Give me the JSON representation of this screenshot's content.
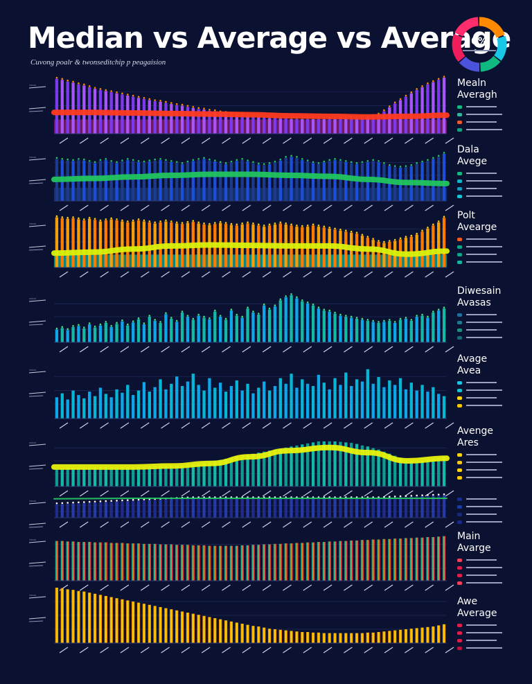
{
  "header": {
    "title": "Median vs Average vs Average",
    "subtitle": "Cuvong poalr & twonseditchip p peagaision",
    "donut_label": "0%",
    "donut_colors": [
      "#ff8a00",
      "#19c6e6",
      "#10b981",
      "#4a53d9",
      "#ef1d5c",
      "#ff2d6b"
    ]
  },
  "legends": [
    {
      "title": [
        "Mealn",
        "Averagh"
      ],
      "swatches": [
        "#10b981",
        "#2fb5a0",
        "#ef5a2a",
        "#11a37f"
      ]
    },
    {
      "title": [
        "Dala",
        "Avege"
      ],
      "swatches": [
        "#10b981",
        "#0fb6c9",
        "#0f9cbf",
        "#13c8d6"
      ]
    },
    {
      "title": [
        "Polt",
        "Avearge"
      ],
      "swatches": [
        "#f35a1d",
        "#0aa687",
        "#0aa687",
        "#11b7a0"
      ]
    },
    {
      "title": [
        "Diwesain",
        "Avasas"
      ],
      "swatches": [
        "#1f6ea0",
        "#1d7c92",
        "#1e8e80",
        "#1a6b75"
      ]
    },
    {
      "title": [
        "Avage",
        "Avea"
      ],
      "swatches": [
        "#19c6e6",
        "#12c2d0",
        "#ffd60a",
        "#f7c900"
      ]
    },
    {
      "title": [
        "Avenge",
        "Ares"
      ],
      "swatches": [
        "#ffd60a",
        "#f4c81d",
        "#ffd60a",
        "#ffcc00"
      ]
    },
    {
      "title": [
        "",
        ""
      ],
      "swatches": [
        "#1a2a8a",
        "#1d3aa0",
        "#172a7a",
        "#1a2a8a"
      ]
    },
    {
      "title": [
        "Main",
        "Avarge"
      ],
      "swatches": [
        "#f43f5e",
        "#e11d48",
        "#e11d48",
        "#f43f5e"
      ]
    },
    {
      "title": [
        "Awe",
        "Average"
      ],
      "swatches": [
        "#e11d48",
        "#e11d48",
        "#e11d48",
        "#be123c"
      ]
    }
  ],
  "chart_data": [
    {
      "type": "bar",
      "panel": 1,
      "n": 72,
      "bar_colors": [
        "#7c3aed",
        "#a855f7"
      ],
      "dot_color": "#ff8a00",
      "line_color": "#ff3b1f",
      "bottom_color": "#7c1d6f",
      "values": [
        0.98,
        0.96,
        0.93,
        0.91,
        0.88,
        0.86,
        0.83,
        0.8,
        0.78,
        0.76,
        0.74,
        0.72,
        0.7,
        0.68,
        0.66,
        0.64,
        0.62,
        0.6,
        0.58,
        0.57,
        0.55,
        0.53,
        0.51,
        0.5,
        0.48,
        0.46,
        0.44,
        0.43,
        0.41,
        0.4,
        0.38,
        0.37,
        0.35,
        0.34,
        0.33,
        0.32,
        0.31,
        0.3,
        0.29,
        0.28,
        0.28,
        0.27,
        0.27,
        0.26,
        0.26,
        0.26,
        0.26,
        0.26,
        0.26,
        0.26,
        0.26,
        0.26,
        0.27,
        0.27,
        0.28,
        0.28,
        0.29,
        0.3,
        0.31,
        0.34,
        0.4,
        0.47,
        0.54,
        0.6,
        0.66,
        0.72,
        0.78,
        0.83,
        0.88,
        0.92,
        0.96,
        1.0
      ],
      "line": [
        0.38,
        0.38,
        0.37,
        0.36,
        0.35,
        0.34,
        0.32,
        0.31,
        0.3,
        0.31,
        0.33
      ]
    },
    {
      "type": "bar",
      "panel": 2,
      "n": 72,
      "bar_colors": [
        "#1e3a8a",
        "#1d4ed8"
      ],
      "dot_color": "#22c55e",
      "line_color": "#22c55e",
      "bottom_color": "#16356e",
      "values": [
        0.82,
        0.8,
        0.79,
        0.78,
        0.8,
        0.79,
        0.76,
        0.74,
        0.78,
        0.8,
        0.76,
        0.74,
        0.77,
        0.8,
        0.78,
        0.76,
        0.75,
        0.77,
        0.79,
        0.8,
        0.78,
        0.76,
        0.74,
        0.72,
        0.75,
        0.78,
        0.8,
        0.82,
        0.79,
        0.77,
        0.74,
        0.72,
        0.75,
        0.78,
        0.8,
        0.77,
        0.74,
        0.71,
        0.7,
        0.72,
        0.75,
        0.79,
        0.84,
        0.86,
        0.84,
        0.8,
        0.77,
        0.74,
        0.72,
        0.75,
        0.78,
        0.8,
        0.78,
        0.76,
        0.74,
        0.72,
        0.74,
        0.76,
        0.78,
        0.76,
        0.72,
        0.68,
        0.66,
        0.65,
        0.66,
        0.68,
        0.72,
        0.75,
        0.78,
        0.82,
        0.86,
        0.92
      ],
      "line": [
        0.42,
        0.44,
        0.47,
        0.5,
        0.52,
        0.52,
        0.5,
        0.48,
        0.42,
        0.36,
        0.34
      ]
    },
    {
      "type": "bar",
      "panel": 3,
      "n": 72,
      "bar_colors": [
        "#f59e0b",
        "#ff7a00"
      ],
      "dot_color": "#facc15",
      "line_color": "#d9f20b",
      "bottom_color": "#0f9b8e",
      "values": [
        0.98,
        0.96,
        0.95,
        0.96,
        0.94,
        0.92,
        0.95,
        0.93,
        0.9,
        0.92,
        0.94,
        0.92,
        0.9,
        0.88,
        0.9,
        0.92,
        0.9,
        0.88,
        0.86,
        0.88,
        0.9,
        0.88,
        0.86,
        0.85,
        0.87,
        0.89,
        0.86,
        0.84,
        0.83,
        0.85,
        0.87,
        0.85,
        0.83,
        0.82,
        0.84,
        0.86,
        0.84,
        0.82,
        0.8,
        0.82,
        0.84,
        0.86,
        0.84,
        0.82,
        0.8,
        0.79,
        0.8,
        0.82,
        0.8,
        0.78,
        0.76,
        0.74,
        0.72,
        0.7,
        0.68,
        0.66,
        0.62,
        0.58,
        0.54,
        0.5,
        0.48,
        0.5,
        0.52,
        0.55,
        0.58,
        0.6,
        0.64,
        0.7,
        0.76,
        0.82,
        0.88,
        0.97
      ],
      "line": [
        0.28,
        0.3,
        0.36,
        0.42,
        0.44,
        0.43,
        0.42,
        0.42,
        0.36,
        0.26,
        0.32
      ]
    },
    {
      "type": "bar",
      "panel": 4,
      "n": 72,
      "bar_colors": [
        "#0ea5e9",
        "#14b8a6"
      ],
      "dot_color": "#4ade80",
      "line_color": "",
      "bottom_color": "",
      "values": [
        0.25,
        0.28,
        0.24,
        0.3,
        0.32,
        0.27,
        0.35,
        0.29,
        0.33,
        0.38,
        0.3,
        0.36,
        0.41,
        0.33,
        0.39,
        0.45,
        0.35,
        0.5,
        0.42,
        0.38,
        0.55,
        0.46,
        0.4,
        0.58,
        0.5,
        0.44,
        0.52,
        0.48,
        0.45,
        0.6,
        0.5,
        0.44,
        0.62,
        0.52,
        0.48,
        0.66,
        0.58,
        0.54,
        0.72,
        0.64,
        0.7,
        0.82,
        0.88,
        0.92,
        0.86,
        0.8,
        0.76,
        0.72,
        0.66,
        0.62,
        0.6,
        0.56,
        0.52,
        0.5,
        0.48,
        0.46,
        0.44,
        0.42,
        0.4,
        0.38,
        0.4,
        0.42,
        0.38,
        0.44,
        0.46,
        0.42,
        0.5,
        0.52,
        0.48,
        0.58,
        0.62,
        0.66
      ],
      "line": []
    },
    {
      "type": "bar",
      "panel": 5,
      "n": 72,
      "bar_colors": [
        "#0ea5e9",
        "#06b6d4"
      ],
      "dot_color": "",
      "line_color": "",
      "bottom_color": "",
      "values": [
        0.38,
        0.45,
        0.34,
        0.5,
        0.42,
        0.36,
        0.48,
        0.4,
        0.55,
        0.44,
        0.38,
        0.52,
        0.46,
        0.6,
        0.42,
        0.5,
        0.65,
        0.48,
        0.56,
        0.7,
        0.52,
        0.62,
        0.75,
        0.58,
        0.66,
        0.8,
        0.6,
        0.5,
        0.72,
        0.55,
        0.64,
        0.48,
        0.58,
        0.68,
        0.5,
        0.62,
        0.45,
        0.55,
        0.66,
        0.5,
        0.58,
        0.72,
        0.62,
        0.8,
        0.55,
        0.7,
        0.62,
        0.58,
        0.78,
        0.64,
        0.52,
        0.72,
        0.6,
        0.82,
        0.58,
        0.7,
        0.66,
        0.88,
        0.62,
        0.74,
        0.56,
        0.68,
        0.6,
        0.72,
        0.52,
        0.64,
        0.5,
        0.6,
        0.48,
        0.56,
        0.44,
        0.4
      ],
      "line": []
    },
    {
      "type": "bar",
      "panel": 6,
      "n": 72,
      "bar_colors": [
        "#0f9b8e",
        "#14b8a6"
      ],
      "dot_color": "",
      "line_color": "#e9f20b",
      "bottom_color": "",
      "values": [
        0.35,
        0.35,
        0.36,
        0.36,
        0.36,
        0.37,
        0.37,
        0.37,
        0.38,
        0.38,
        0.38,
        0.38,
        0.38,
        0.38,
        0.38,
        0.39,
        0.39,
        0.39,
        0.4,
        0.4,
        0.4,
        0.41,
        0.41,
        0.42,
        0.43,
        0.44,
        0.45,
        0.46,
        0.48,
        0.5,
        0.52,
        0.54,
        0.56,
        0.58,
        0.6,
        0.62,
        0.64,
        0.66,
        0.68,
        0.7,
        0.72,
        0.74,
        0.76,
        0.78,
        0.8,
        0.82,
        0.84,
        0.86,
        0.88,
        0.88,
        0.88,
        0.88,
        0.87,
        0.86,
        0.85,
        0.83,
        0.8,
        0.78,
        0.75,
        0.72,
        0.68,
        0.64,
        0.6,
        0.56,
        0.52,
        0.5,
        0.5,
        0.5,
        0.52,
        0.54,
        0.56,
        0.58
      ],
      "line": [
        0.38,
        0.38,
        0.38,
        0.4,
        0.45,
        0.58,
        0.7,
        0.76,
        0.66,
        0.5,
        0.55
      ]
    },
    {
      "type": "bar",
      "panel": 7,
      "n": 72,
      "bar_colors": [
        "#1e2b8a",
        "#253aa8"
      ],
      "dot_color": "#ffffff",
      "line_color": "#22c55e",
      "bottom_color": "",
      "values": [
        0.55,
        0.56,
        0.57,
        0.58,
        0.59,
        0.6,
        0.61,
        0.62,
        0.63,
        0.64,
        0.65,
        0.66,
        0.67,
        0.68,
        0.69,
        0.7,
        0.71,
        0.72,
        0.73,
        0.74,
        0.75,
        0.76,
        0.77,
        0.78,
        0.79,
        0.8,
        0.8,
        0.8,
        0.8,
        0.8,
        0.8,
        0.8,
        0.8,
        0.8,
        0.8,
        0.8,
        0.8,
        0.8,
        0.8,
        0.8,
        0.8,
        0.8,
        0.8,
        0.8,
        0.8,
        0.8,
        0.8,
        0.8,
        0.8,
        0.8,
        0.8,
        0.8,
        0.8,
        0.8,
        0.8,
        0.8,
        0.8,
        0.8,
        0.8,
        0.8,
        0.81,
        0.82,
        0.83,
        0.84,
        0.85,
        0.86,
        0.87,
        0.88,
        0.89,
        0.9,
        0.91,
        0.92
      ],
      "line": [
        0.78,
        0.79,
        0.8,
        0.8,
        0.8,
        0.8,
        0.8,
        0.8,
        0.8,
        0.8,
        0.8
      ]
    },
    {
      "type": "bar",
      "panel": 8,
      "n": 72,
      "bar_colors": [
        "gradient-teal-red"
      ],
      "dot_color": "",
      "line_color": "",
      "bottom_color": "",
      "values": [
        0.82,
        0.82,
        0.81,
        0.81,
        0.8,
        0.8,
        0.8,
        0.79,
        0.79,
        0.79,
        0.78,
        0.78,
        0.78,
        0.77,
        0.77,
        0.77,
        0.76,
        0.76,
        0.76,
        0.75,
        0.75,
        0.75,
        0.74,
        0.74,
        0.74,
        0.73,
        0.73,
        0.73,
        0.72,
        0.72,
        0.72,
        0.72,
        0.72,
        0.72,
        0.73,
        0.73,
        0.74,
        0.74,
        0.75,
        0.75,
        0.76,
        0.76,
        0.77,
        0.77,
        0.78,
        0.78,
        0.79,
        0.79,
        0.8,
        0.8,
        0.81,
        0.81,
        0.82,
        0.82,
        0.83,
        0.83,
        0.84,
        0.84,
        0.85,
        0.85,
        0.86,
        0.86,
        0.87,
        0.87,
        0.88,
        0.88,
        0.89,
        0.89,
        0.9,
        0.9,
        0.91,
        0.92
      ],
      "line": []
    },
    {
      "type": "bar",
      "panel": 9,
      "n": 72,
      "bar_colors": [
        "gradient-orange-yellow"
      ],
      "dot_color": "",
      "line_color": "",
      "bottom_color": "",
      "values": [
        1.0,
        0.99,
        0.97,
        0.96,
        0.94,
        0.93,
        0.91,
        0.89,
        0.87,
        0.85,
        0.83,
        0.81,
        0.79,
        0.77,
        0.75,
        0.73,
        0.71,
        0.69,
        0.67,
        0.65,
        0.63,
        0.61,
        0.59,
        0.57,
        0.55,
        0.53,
        0.51,
        0.49,
        0.47,
        0.45,
        0.43,
        0.41,
        0.39,
        0.37,
        0.35,
        0.33,
        0.31,
        0.3,
        0.28,
        0.26,
        0.25,
        0.24,
        0.23,
        0.22,
        0.21,
        0.2,
        0.2,
        0.19,
        0.19,
        0.18,
        0.18,
        0.18,
        0.18,
        0.18,
        0.18,
        0.18,
        0.18,
        0.19,
        0.19,
        0.2,
        0.21,
        0.22,
        0.23,
        0.24,
        0.25,
        0.26,
        0.27,
        0.28,
        0.29,
        0.3,
        0.32,
        0.34
      ],
      "line": []
    }
  ]
}
